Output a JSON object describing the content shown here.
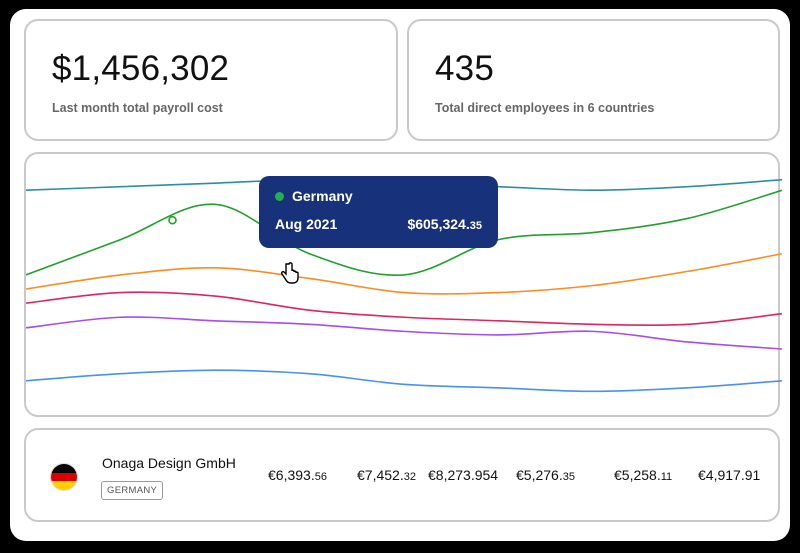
{
  "stats": [
    {
      "value": "$1,456,302",
      "label": "Last month total payroll cost"
    },
    {
      "value": "435",
      "label": "Total direct employees in 6 countries"
    }
  ],
  "tooltip": {
    "country": "Germany",
    "date": "Aug 2021",
    "value_main": "$605,324.",
    "value_cents": "35",
    "dot_color": "#22b14c"
  },
  "chart_data": {
    "type": "line",
    "title": "",
    "xlabel": "",
    "ylabel": "",
    "series": [
      {
        "color": "#2a8fa0",
        "values": [
          62,
          63,
          64,
          65,
          64,
          63,
          62,
          63,
          65
        ]
      },
      {
        "color": "#22a02e",
        "values": [
          38,
          48,
          58,
          44,
          38,
          48,
          50,
          54,
          62
        ]
      },
      {
        "color": "#ff8a1f",
        "values": [
          34,
          38,
          40,
          37,
          33,
          33,
          35,
          39,
          44
        ]
      },
      {
        "color": "#e0245e",
        "values": [
          30,
          33,
          32,
          28,
          26,
          25,
          24,
          24,
          27
        ]
      },
      {
        "color": "#a64cf0",
        "values": [
          23,
          26,
          25,
          24,
          22,
          21,
          22,
          19,
          17
        ]
      },
      {
        "color": "#4a90f0",
        "values": [
          8,
          10,
          11,
          10,
          7,
          6,
          5,
          6,
          8
        ]
      }
    ],
    "highlight": {
      "series": 1,
      "point_index": 1.55
    }
  },
  "row": {
    "company": "Onaga Design GmbH",
    "country_badge": "GERMANY",
    "flag": [
      "#000000",
      "#dd0000",
      "#ffce00"
    ],
    "amounts": [
      {
        "main": "€6,393.",
        "cents": "56"
      },
      {
        "main": "€7,452.",
        "cents": "32"
      },
      {
        "main": "€8,273.954",
        "cents": ""
      },
      {
        "main": "€5,276.",
        "cents": "35"
      },
      {
        "main": "€5,258.",
        "cents": "11"
      },
      {
        "main": "€4,917.91",
        "cents": ""
      }
    ]
  }
}
